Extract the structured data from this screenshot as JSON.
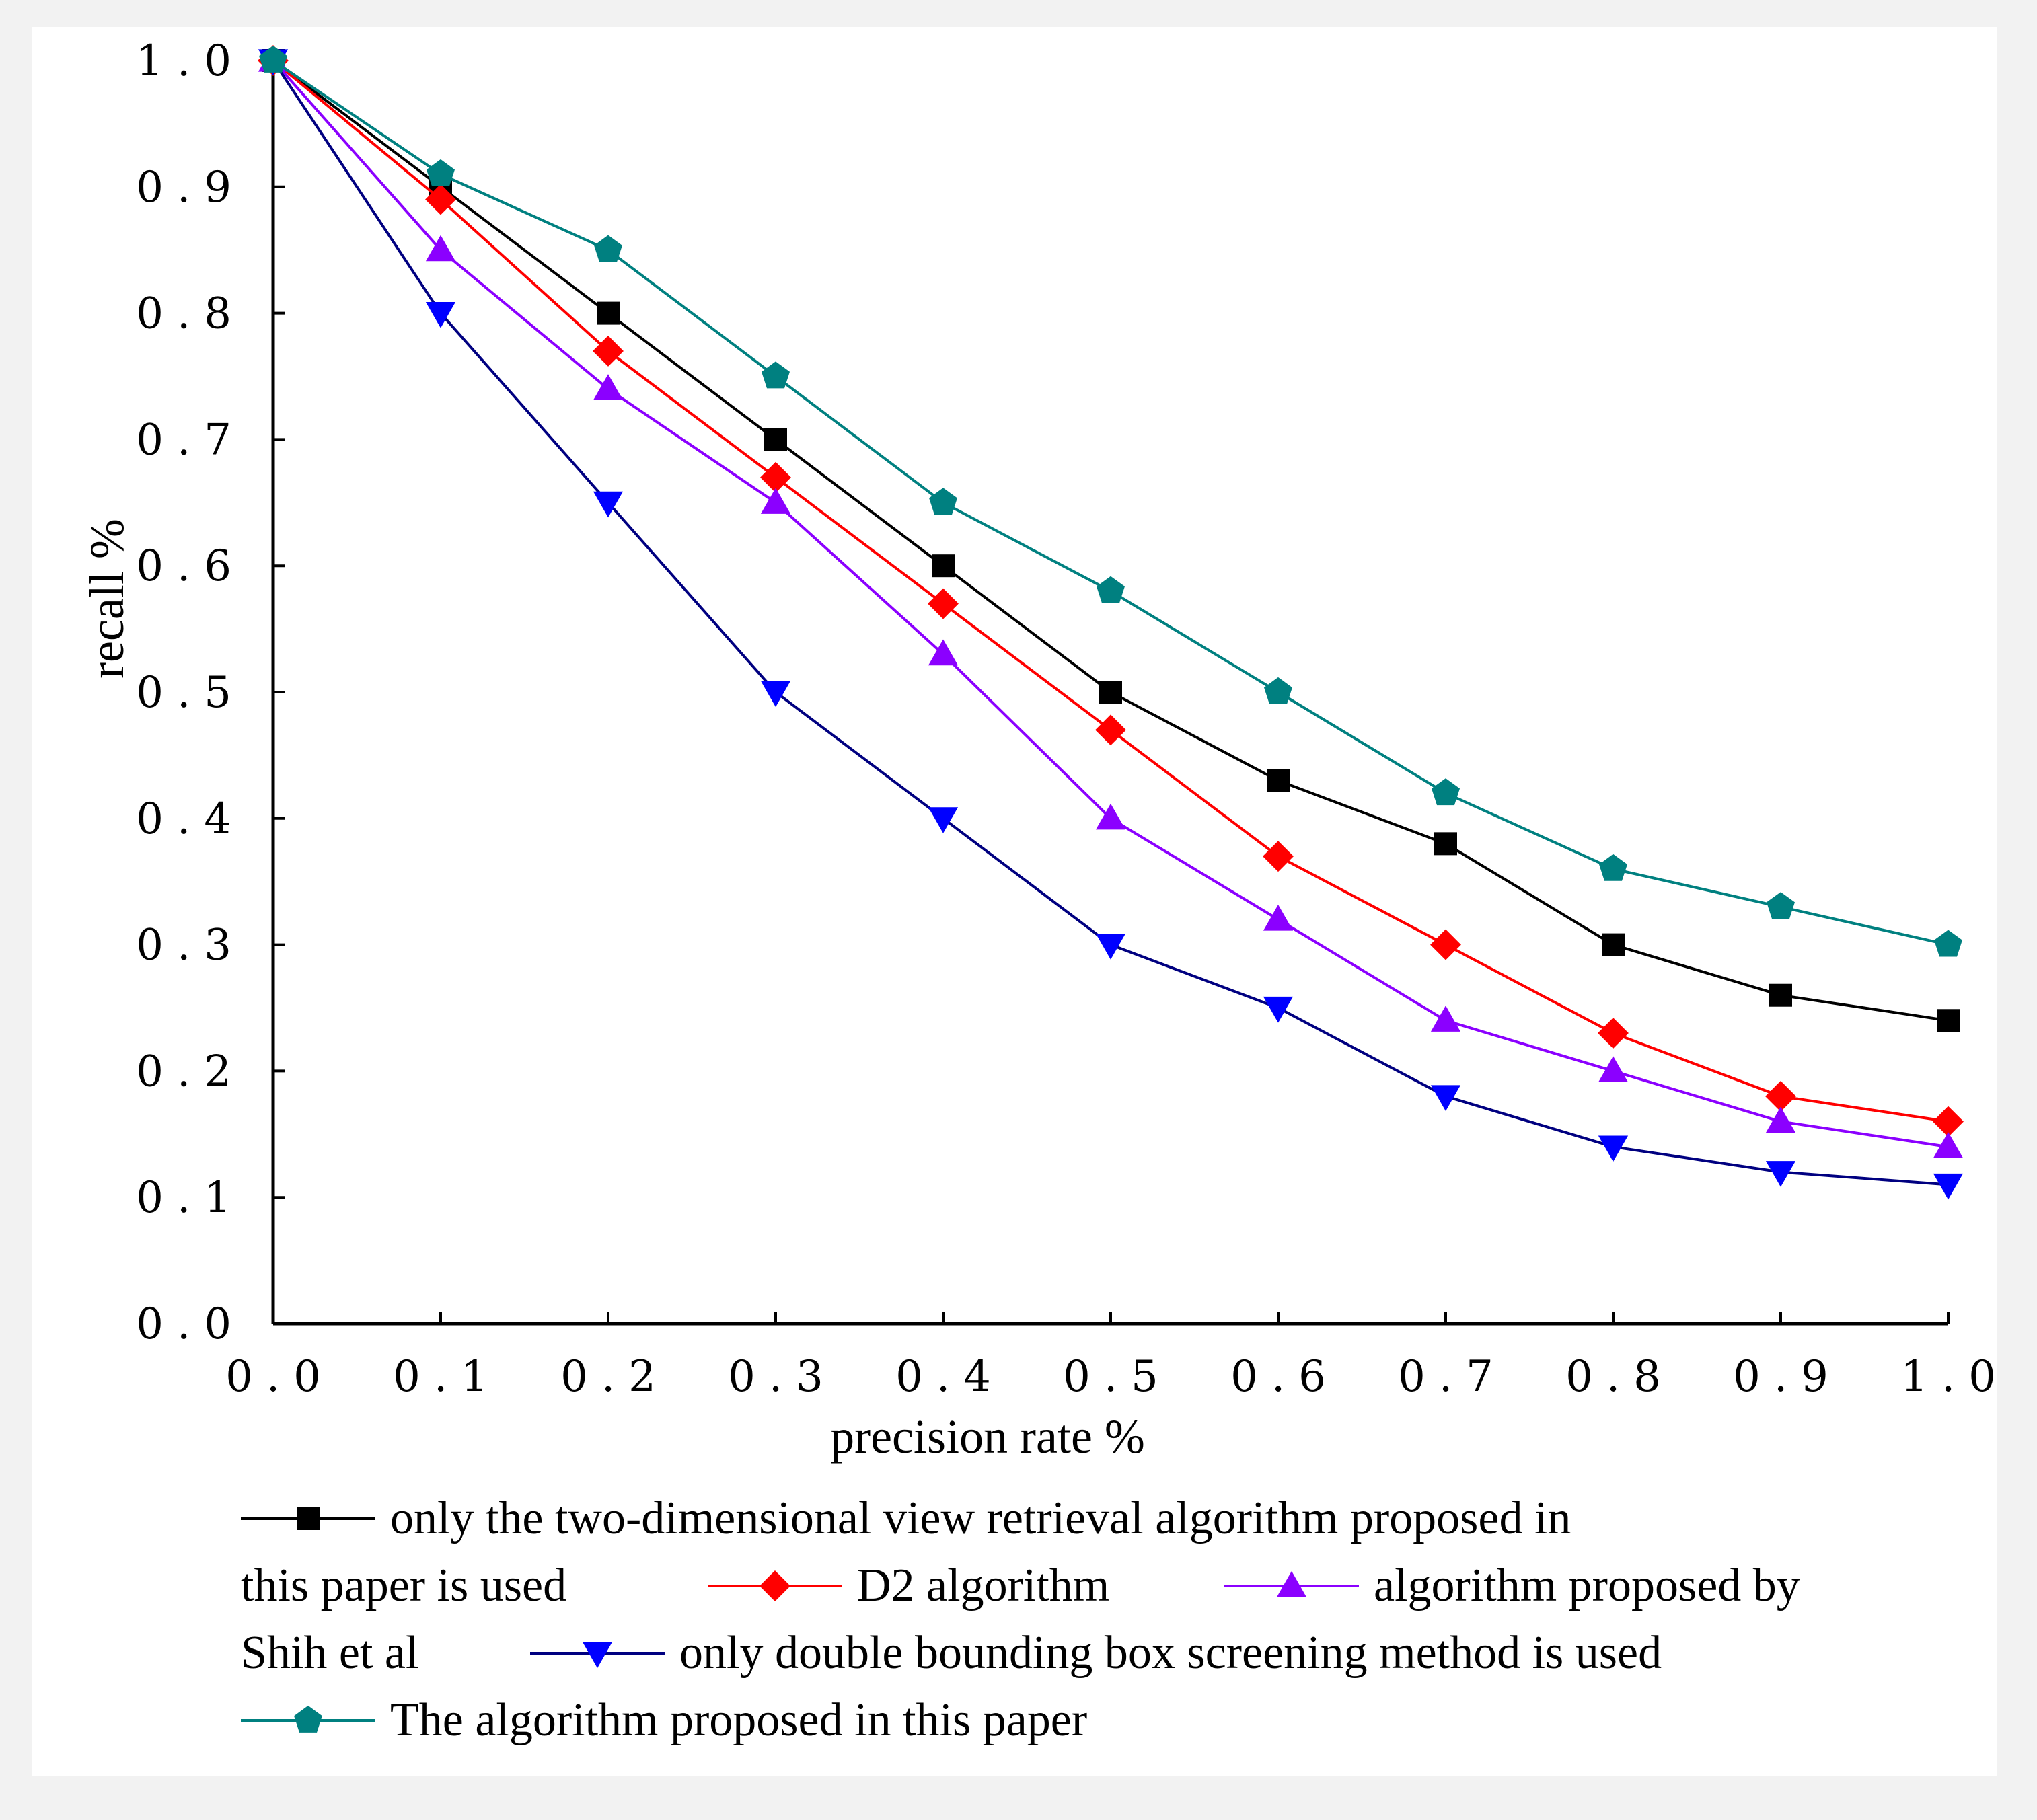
{
  "chart_data": {
    "type": "line",
    "title": "",
    "xlabel": "precision rate %",
    "ylabel": "recall %",
    "x": [
      0.0,
      0.1,
      0.2,
      0.3,
      0.4,
      0.5,
      0.6,
      0.7,
      0.8,
      0.9,
      1.0
    ],
    "xlim": [
      0.0,
      1.0
    ],
    "ylim": [
      0.0,
      1.0
    ],
    "xticks": [
      "0.0",
      "0.1",
      "0.2",
      "0.3",
      "0.4",
      "0.5",
      "0.6",
      "0.7",
      "0.8",
      "0.9",
      "1.0"
    ],
    "yticks": [
      "0.0",
      "0.1",
      "0.2",
      "0.3",
      "0.4",
      "0.5",
      "0.6",
      "0.7",
      "0.8",
      "0.9",
      "1.0"
    ],
    "grid": false,
    "legend_position": "bottom",
    "series": [
      {
        "name": "only the two-dimensional view retrieval algorithm proposed in this paper is used",
        "color": "#000000",
        "marker": "square",
        "values": [
          1.0,
          0.9,
          0.8,
          0.7,
          0.6,
          0.5,
          0.43,
          0.38,
          0.3,
          0.26,
          0.24
        ]
      },
      {
        "name": "D2 algorithm",
        "color": "#ff0000",
        "marker": "diamond",
        "values": [
          1.0,
          0.89,
          0.77,
          0.67,
          0.57,
          0.47,
          0.37,
          0.3,
          0.23,
          0.18,
          0.16
        ]
      },
      {
        "name": "algorithm proposed by Shih et al",
        "color": "#8b00ff",
        "marker": "triangle-up",
        "values": [
          1.0,
          0.85,
          0.74,
          0.65,
          0.53,
          0.4,
          0.32,
          0.24,
          0.2,
          0.16,
          0.14
        ]
      },
      {
        "name": "only double bounding box screening method is used",
        "color": "#0000ff",
        "line_color": "#000080",
        "marker": "triangle-down",
        "values": [
          1.0,
          0.8,
          0.65,
          0.5,
          0.4,
          0.3,
          0.25,
          0.18,
          0.14,
          0.12,
          0.11
        ]
      },
      {
        "name": "The algorithm proposed in this paper",
        "color": "#008080",
        "marker": "pentagon",
        "values": [
          1.0,
          0.91,
          0.85,
          0.75,
          0.65,
          0.58,
          0.5,
          0.42,
          0.36,
          0.33,
          0.3
        ]
      }
    ],
    "legend_lines": [
      [
        "only the two-dimensional view retrieval algorithm proposed in"
      ],
      [
        "this paper is used",
        "D2 algorithm",
        "algorithm proposed by"
      ],
      [
        "Shih et al",
        "only double bounding box screening method is used"
      ],
      [
        "The algorithm proposed in this paper"
      ]
    ]
  }
}
